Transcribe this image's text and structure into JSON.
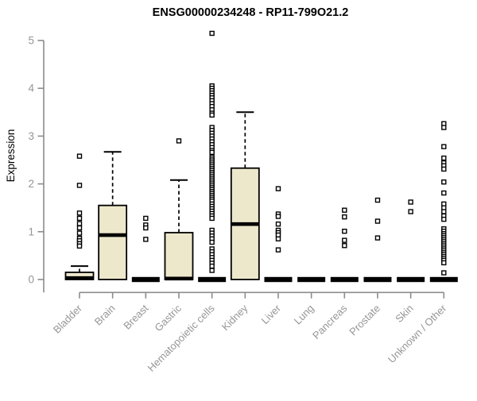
{
  "chart_data": {
    "type": "boxplot",
    "title": "ENSG00000234248 - RP11-799O21.2",
    "ylabel": "Expression",
    "xlabel": "",
    "ylim": [
      0,
      5
    ],
    "yticks": [
      0,
      1,
      2,
      3,
      4,
      5
    ],
    "grid": false,
    "legend": "none",
    "categories": [
      "Bladder",
      "Brain",
      "Breast",
      "Gastric",
      "Hematopoietic cells",
      "Kidney",
      "Liver",
      "Lung",
      "Pancreas",
      "Prostate",
      "Skin",
      "Unknown / Other"
    ],
    "colors": {
      "box_fill": "#ede8cc",
      "box_stroke": "#000000",
      "axis": "#8c8c8c",
      "tick_label": "#969696",
      "title": "#000000",
      "background": "#ffffff",
      "outlier_fill": "#ffffff"
    },
    "series": [
      {
        "name": "Bladder",
        "q1": 0,
        "median": 0.03,
        "q3": 0.15,
        "whisker_low": 0,
        "whisker_high": 0.28,
        "outliers": [
          2.58,
          1.97,
          1.39,
          1.28,
          1.17,
          1.08,
          0.97,
          0.86,
          0.81,
          0.75,
          0.7
        ]
      },
      {
        "name": "Brain",
        "q1": 0,
        "median": 0.93,
        "q3": 1.55,
        "whisker_low": 0,
        "whisker_high": 2.67,
        "outliers": []
      },
      {
        "name": "Breast",
        "q1": 0,
        "median": 0,
        "q3": 0,
        "whisker_low": 0,
        "whisker_high": 0,
        "outliers": [
          1.28,
          1.14,
          1.08,
          0.84
        ]
      },
      {
        "name": "Gastric",
        "q1": 0,
        "median": 0.02,
        "q3": 0.98,
        "whisker_low": 0,
        "whisker_high": 2.08,
        "outliers": [
          2.9
        ]
      },
      {
        "name": "Hematopoietic cells",
        "q1": 0,
        "median": 0,
        "q3": 0,
        "whisker_low": 0,
        "whisker_high": 0,
        "outliers": [
          5.15,
          4.05,
          4.0,
          3.95,
          3.9,
          3.85,
          3.8,
          3.74,
          3.68,
          3.62,
          3.55,
          3.48,
          3.44,
          3.18,
          3.12,
          3.06,
          3.0,
          2.94,
          2.88,
          2.82,
          2.76,
          2.7,
          2.66,
          2.56,
          2.52,
          2.48,
          2.44,
          2.4,
          2.36,
          2.32,
          2.28,
          2.24,
          2.2,
          2.16,
          2.12,
          2.08,
          2.04,
          2.0,
          1.96,
          1.92,
          1.88,
          1.84,
          1.8,
          1.76,
          1.72,
          1.68,
          1.64,
          1.58,
          1.53,
          1.48,
          1.43,
          1.38,
          1.33,
          1.28,
          1.03,
          0.97,
          0.91,
          0.85,
          0.78,
          0.64,
          0.58,
          0.52,
          0.46,
          0.4,
          0.34,
          0.28,
          0.19
        ]
      },
      {
        "name": "Kidney",
        "q1": 0,
        "median": 1.16,
        "q3": 2.33,
        "whisker_low": 0,
        "whisker_high": 3.5,
        "outliers": []
      },
      {
        "name": "Liver",
        "q1": 0,
        "median": 0,
        "q3": 0,
        "whisker_low": 0,
        "whisker_high": 0,
        "outliers": [
          1.9,
          1.37,
          1.32,
          1.16,
          1.03,
          0.98,
          0.93,
          0.85,
          0.62
        ]
      },
      {
        "name": "Lung",
        "q1": 0,
        "median": 0,
        "q3": 0,
        "whisker_low": 0,
        "whisker_high": 0,
        "outliers": []
      },
      {
        "name": "Pancreas",
        "q1": 0,
        "median": 0,
        "q3": 0,
        "whisker_low": 0,
        "whisker_high": 0,
        "outliers": [
          1.45,
          1.31,
          1.01,
          0.82,
          0.71
        ]
      },
      {
        "name": "Prostate",
        "q1": 0,
        "median": 0,
        "q3": 0,
        "whisker_low": 0,
        "whisker_high": 0,
        "outliers": [
          1.66,
          1.22,
          0.87
        ]
      },
      {
        "name": "Skin",
        "q1": 0,
        "median": 0,
        "q3": 0,
        "whisker_low": 0,
        "whisker_high": 0,
        "outliers": [
          1.62,
          1.42
        ]
      },
      {
        "name": "Unknown / Other",
        "q1": 0,
        "median": 0,
        "q3": 0,
        "whisker_low": 0,
        "whisker_high": 0,
        "outliers": [
          3.26,
          3.18,
          2.78,
          2.54,
          2.44,
          2.38,
          2.31,
          2.04,
          1.81,
          1.58,
          1.5,
          1.42,
          1.33,
          1.26,
          1.06,
          1.01,
          0.96,
          0.92,
          0.88,
          0.84,
          0.8,
          0.76,
          0.72,
          0.68,
          0.64,
          0.6,
          0.56,
          0.52,
          0.48,
          0.44,
          0.4,
          0.35,
          0.14
        ]
      }
    ]
  }
}
